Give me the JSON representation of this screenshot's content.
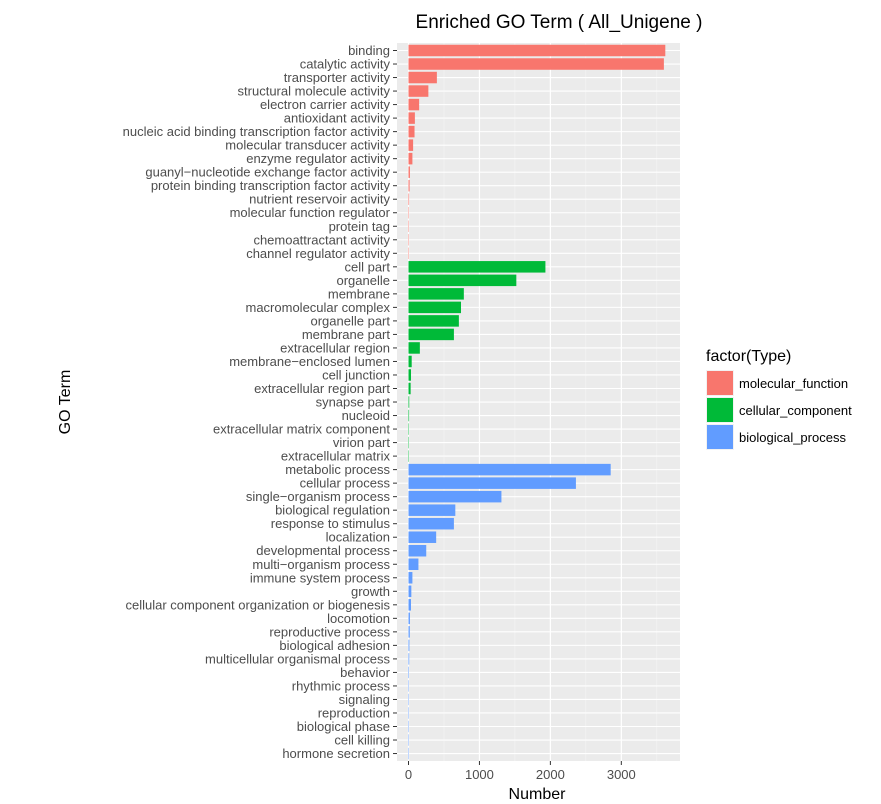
{
  "chart_data": {
    "type": "bar",
    "orientation": "horizontal",
    "title": "Enriched GO Term ( All_Unigene )",
    "xlabel": "Number",
    "ylabel": "GO Term",
    "xlim": [
      0,
      3800
    ],
    "xticks": [
      0,
      1000,
      2000,
      3000
    ],
    "grid": true,
    "legend_title": "factor(Type)",
    "legend_position": "right",
    "series": [
      {
        "name": "molecular_function",
        "color": "#F8766D"
      },
      {
        "name": "cellular_component",
        "color": "#00BA38"
      },
      {
        "name": "biological_process",
        "color": "#619CFF"
      }
    ],
    "bars": [
      {
        "label": "binding",
        "value": 3620,
        "type": "molecular_function"
      },
      {
        "label": "catalytic activity",
        "value": 3600,
        "type": "molecular_function"
      },
      {
        "label": "transporter activity",
        "value": 400,
        "type": "molecular_function"
      },
      {
        "label": "structural molecule activity",
        "value": 280,
        "type": "molecular_function"
      },
      {
        "label": "electron carrier activity",
        "value": 150,
        "type": "molecular_function"
      },
      {
        "label": "antioxidant activity",
        "value": 90,
        "type": "molecular_function"
      },
      {
        "label": "nucleic acid binding transcription factor activity",
        "value": 85,
        "type": "molecular_function"
      },
      {
        "label": "molecular transducer activity",
        "value": 65,
        "type": "molecular_function"
      },
      {
        "label": "enzyme regulator activity",
        "value": 55,
        "type": "molecular_function"
      },
      {
        "label": "guanyl−nucleotide exchange factor activity",
        "value": 20,
        "type": "molecular_function"
      },
      {
        "label": "protein binding transcription factor activity",
        "value": 15,
        "type": "molecular_function"
      },
      {
        "label": "nutrient reservoir activity",
        "value": 8,
        "type": "molecular_function"
      },
      {
        "label": "molecular function regulator",
        "value": 5,
        "type": "molecular_function"
      },
      {
        "label": "protein tag",
        "value": 3,
        "type": "molecular_function"
      },
      {
        "label": "chemoattractant activity",
        "value": 2,
        "type": "molecular_function"
      },
      {
        "label": "channel regulator activity",
        "value": 1,
        "type": "molecular_function"
      },
      {
        "label": "cell part",
        "value": 1930,
        "type": "cellular_component"
      },
      {
        "label": "organelle",
        "value": 1520,
        "type": "cellular_component"
      },
      {
        "label": "membrane",
        "value": 780,
        "type": "cellular_component"
      },
      {
        "label": "macromolecular complex",
        "value": 740,
        "type": "cellular_component"
      },
      {
        "label": "organelle part",
        "value": 710,
        "type": "cellular_component"
      },
      {
        "label": "membrane part",
        "value": 640,
        "type": "cellular_component"
      },
      {
        "label": "extracellular region",
        "value": 160,
        "type": "cellular_component"
      },
      {
        "label": "membrane−enclosed lumen",
        "value": 45,
        "type": "cellular_component"
      },
      {
        "label": "cell junction",
        "value": 35,
        "type": "cellular_component"
      },
      {
        "label": "extracellular region part",
        "value": 30,
        "type": "cellular_component"
      },
      {
        "label": "synapse part",
        "value": 10,
        "type": "cellular_component"
      },
      {
        "label": "nucleoid",
        "value": 8,
        "type": "cellular_component"
      },
      {
        "label": "extracellular matrix component",
        "value": 4,
        "type": "cellular_component"
      },
      {
        "label": "virion part",
        "value": 3,
        "type": "cellular_component"
      },
      {
        "label": "extracellular matrix",
        "value": 2,
        "type": "cellular_component"
      },
      {
        "label": "metabolic process",
        "value": 2850,
        "type": "biological_process"
      },
      {
        "label": "cellular process",
        "value": 2360,
        "type": "biological_process"
      },
      {
        "label": "single−organism process",
        "value": 1310,
        "type": "biological_process"
      },
      {
        "label": "biological regulation",
        "value": 660,
        "type": "biological_process"
      },
      {
        "label": "response to stimulus",
        "value": 640,
        "type": "biological_process"
      },
      {
        "label": "localization",
        "value": 390,
        "type": "biological_process"
      },
      {
        "label": "developmental process",
        "value": 250,
        "type": "biological_process"
      },
      {
        "label": "multi−organism process",
        "value": 140,
        "type": "biological_process"
      },
      {
        "label": "immune system process",
        "value": 55,
        "type": "biological_process"
      },
      {
        "label": "growth",
        "value": 40,
        "type": "biological_process"
      },
      {
        "label": "cellular component organization or biogenesis",
        "value": 35,
        "type": "biological_process"
      },
      {
        "label": "locomotion",
        "value": 20,
        "type": "biological_process"
      },
      {
        "label": "reproductive process",
        "value": 18,
        "type": "biological_process"
      },
      {
        "label": "biological adhesion",
        "value": 12,
        "type": "biological_process"
      },
      {
        "label": "multicellular organismal process",
        "value": 10,
        "type": "biological_process"
      },
      {
        "label": "behavior",
        "value": 7,
        "type": "biological_process"
      },
      {
        "label": "rhythmic process",
        "value": 5,
        "type": "biological_process"
      },
      {
        "label": "signaling",
        "value": 4,
        "type": "biological_process"
      },
      {
        "label": "reproduction",
        "value": 4,
        "type": "biological_process"
      },
      {
        "label": "biological phase",
        "value": 2,
        "type": "biological_process"
      },
      {
        "label": "cell killing",
        "value": 1,
        "type": "biological_process"
      },
      {
        "label": "hormone secretion",
        "value": 1,
        "type": "biological_process"
      }
    ]
  }
}
